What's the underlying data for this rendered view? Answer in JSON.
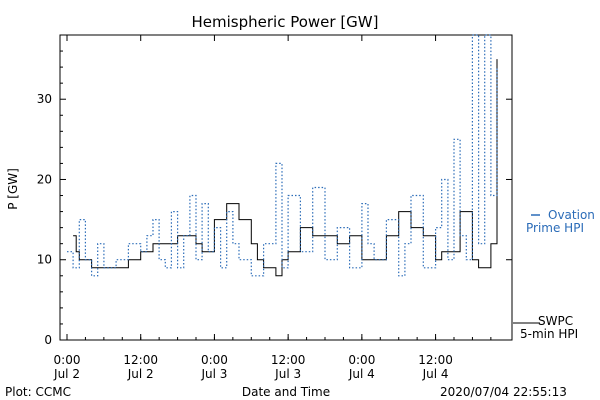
{
  "chart_data": {
    "type": "line",
    "title": "Hemispheric Power [GW]",
    "xlabel": "Date and Time",
    "ylabel": "P [GW]",
    "ylim": [
      0,
      38
    ],
    "yticks": [
      0,
      10,
      20,
      30
    ],
    "xlim": [
      "2020-07-02 00:00",
      "2020-07-04 22:00"
    ],
    "xticks": [
      {
        "x": "2020-07-02 00:00",
        "time": "0:00",
        "date": "Jul 2"
      },
      {
        "x": "2020-07-02 12:00",
        "time": "12:00",
        "date": "Jul 2"
      },
      {
        "x": "2020-07-03 00:00",
        "time": "0:00",
        "date": "Jul 3"
      },
      {
        "x": "2020-07-03 12:00",
        "time": "12:00",
        "date": "Jul 3"
      },
      {
        "x": "2020-07-04 00:00",
        "time": "0:00",
        "date": "Jul 4"
      },
      {
        "x": "2020-07-04 12:00",
        "time": "12:00",
        "date": "Jul 4"
      }
    ],
    "grid": false,
    "legend_position": "right",
    "series": [
      {
        "name": "SWPC 5-min HPI",
        "style": "solid",
        "color": "#000000",
        "x": [
          "2020-07-02 01:00",
          "2020-07-02 01:30",
          "2020-07-02 02:00",
          "2020-07-02 03:00",
          "2020-07-02 04:00",
          "2020-07-02 05:00",
          "2020-07-02 06:00",
          "2020-07-02 08:00",
          "2020-07-02 10:00",
          "2020-07-02 12:00",
          "2020-07-02 14:00",
          "2020-07-02 16:00",
          "2020-07-02 18:00",
          "2020-07-02 20:00",
          "2020-07-02 21:00",
          "2020-07-02 22:00",
          "2020-07-03 00:00",
          "2020-07-03 02:00",
          "2020-07-03 04:00",
          "2020-07-03 06:00",
          "2020-07-03 07:00",
          "2020-07-03 08:00",
          "2020-07-03 09:00",
          "2020-07-03 10:00",
          "2020-07-03 11:00",
          "2020-07-03 12:00",
          "2020-07-03 14:00",
          "2020-07-03 16:00",
          "2020-07-03 18:00",
          "2020-07-03 20:00",
          "2020-07-03 22:00",
          "2020-07-04 00:00",
          "2020-07-04 02:00",
          "2020-07-04 04:00",
          "2020-07-04 06:00",
          "2020-07-04 08:00",
          "2020-07-04 10:00",
          "2020-07-04 12:00",
          "2020-07-04 13:00",
          "2020-07-04 14:00",
          "2020-07-04 16:00",
          "2020-07-04 18:00",
          "2020-07-04 19:00",
          "2020-07-04 20:00",
          "2020-07-04 21:00",
          "2020-07-04 22:00"
        ],
        "y": [
          13,
          11,
          10,
          10,
          9,
          9,
          9,
          9,
          10,
          11,
          12,
          12,
          13,
          13,
          12,
          11,
          15,
          17,
          15,
          12,
          10,
          9,
          9,
          8,
          10,
          11,
          14,
          13,
          13,
          12,
          13,
          10,
          10,
          13,
          16,
          14,
          13,
          10,
          11,
          11,
          16,
          10,
          9,
          9,
          12,
          35
        ]
      },
      {
        "name": "Ovation Prime HPI",
        "style": "dotted",
        "color": "#2b6cb8",
        "x": [
          "2020-07-02 00:00",
          "2020-07-02 01:00",
          "2020-07-02 02:00",
          "2020-07-02 03:00",
          "2020-07-02 04:00",
          "2020-07-02 05:00",
          "2020-07-02 06:00",
          "2020-07-02 08:00",
          "2020-07-02 10:00",
          "2020-07-02 12:00",
          "2020-07-02 13:00",
          "2020-07-02 14:00",
          "2020-07-02 15:00",
          "2020-07-02 16:00",
          "2020-07-02 17:00",
          "2020-07-02 18:00",
          "2020-07-02 19:00",
          "2020-07-02 20:00",
          "2020-07-02 21:00",
          "2020-07-02 22:00",
          "2020-07-02 23:00",
          "2020-07-03 00:00",
          "2020-07-03 01:00",
          "2020-07-03 02:00",
          "2020-07-03 03:00",
          "2020-07-03 04:00",
          "2020-07-03 06:00",
          "2020-07-03 08:00",
          "2020-07-03 10:00",
          "2020-07-03 11:00",
          "2020-07-03 12:00",
          "2020-07-03 14:00",
          "2020-07-03 16:00",
          "2020-07-03 18:00",
          "2020-07-03 20:00",
          "2020-07-03 22:00",
          "2020-07-04 00:00",
          "2020-07-04 01:00",
          "2020-07-04 02:00",
          "2020-07-04 04:00",
          "2020-07-04 06:00",
          "2020-07-04 07:00",
          "2020-07-04 08:00",
          "2020-07-04 10:00",
          "2020-07-04 12:00",
          "2020-07-04 13:00",
          "2020-07-04 14:00",
          "2020-07-04 15:00",
          "2020-07-04 16:00",
          "2020-07-04 17:00",
          "2020-07-04 18:00",
          "2020-07-04 19:00",
          "2020-07-04 20:00",
          "2020-07-04 21:00",
          "2020-07-04 22:00"
        ],
        "y": [
          11,
          9,
          15,
          10,
          8,
          12,
          9,
          10,
          12,
          11,
          13,
          15,
          10,
          9,
          16,
          9,
          13,
          18,
          10,
          17,
          11,
          14,
          9,
          16,
          12,
          10,
          8,
          12,
          22,
          9,
          18,
          11,
          19,
          10,
          14,
          9,
          17,
          12,
          10,
          15,
          8,
          12,
          18,
          9,
          14,
          20,
          10,
          25,
          13,
          10,
          38,
          12,
          38,
          18,
          34
        ]
      }
    ],
    "legend": [
      {
        "series": "Ovation Prime HPI",
        "line1": "Ovation",
        "line2": "Prime HPI"
      },
      {
        "series": "SWPC 5-min HPI",
        "line1": "SWPC",
        "line2": "5-min HPI"
      }
    ],
    "footer_left": "Plot: CCMC",
    "footer_right": "2020/07/04 22:55:13"
  }
}
